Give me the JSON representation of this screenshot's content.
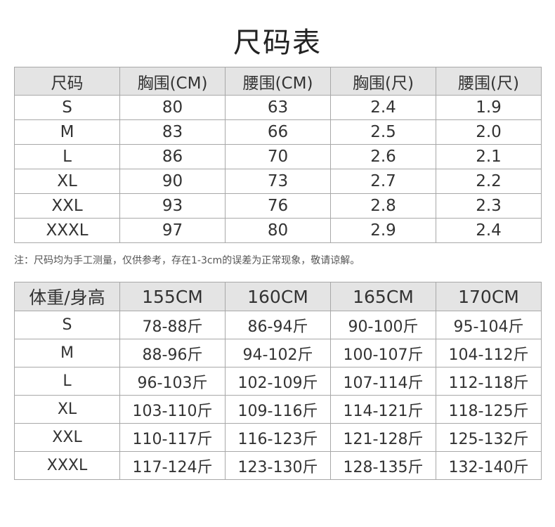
{
  "title": "尺码表",
  "table1": {
    "headers": [
      "尺码",
      "胸围(CM)",
      "腰围(CM)",
      "胸围(尺)",
      "腰围(尺)"
    ],
    "rows": [
      [
        "S",
        "80",
        "63",
        "2.4",
        "1.9"
      ],
      [
        "M",
        "83",
        "66",
        "2.5",
        "2.0"
      ],
      [
        "L",
        "86",
        "70",
        "2.6",
        "2.1"
      ],
      [
        "XL",
        "90",
        "73",
        "2.7",
        "2.2"
      ],
      [
        "XXL",
        "93",
        "76",
        "2.8",
        "2.3"
      ],
      [
        "XXXL",
        "97",
        "80",
        "2.9",
        "2.4"
      ]
    ]
  },
  "note": "注：尺码均为手工测量，仅供参考，存在1-3cm的误差为正常现象，敬请谅解。",
  "table2": {
    "headers": [
      "体重/身高",
      "155CM",
      "160CM",
      "165CM",
      "170CM"
    ],
    "rows": [
      [
        "S",
        "78-88斤",
        "86-94斤",
        "90-100斤",
        "95-104斤"
      ],
      [
        "M",
        "88-96斤",
        "94-102斤",
        "100-107斤",
        "104-112斤"
      ],
      [
        "L",
        "96-103斤",
        "102-109斤",
        "107-114斤",
        "112-118斤"
      ],
      [
        "XL",
        "103-110斤",
        "109-116斤",
        "114-121斤",
        "118-125斤"
      ],
      [
        "XXL",
        "110-117斤",
        "116-123斤",
        "121-128斤",
        "125-132斤"
      ],
      [
        "XXXL",
        "117-124斤",
        "123-130斤",
        "128-135斤",
        "132-140斤"
      ]
    ]
  },
  "colors": {
    "header_bg": "#e4e4e4",
    "border": "#a8a8a8"
  }
}
